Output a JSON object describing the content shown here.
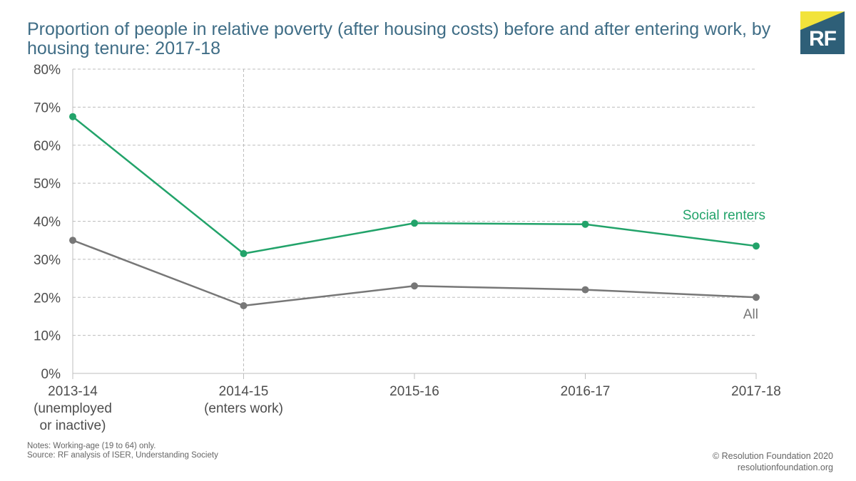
{
  "header": {
    "title": "Proportion of people in relative poverty (after housing costs) before and after entering work, by housing tenure: 2017-18",
    "logo_text": "RF"
  },
  "footer": {
    "notes": "Notes: Working-age (19 to 64) only.",
    "source": "Source: RF analysis of ISER, Understanding Society",
    "copyright": "© Resolution Foundation 2020",
    "website": "resolutionfoundation.org"
  },
  "colors": {
    "title": "#3f6d86",
    "social_renters": "#22a36a",
    "all": "#777777",
    "logo_bg": "#2e5f78",
    "logo_accent": "#f2e33b"
  },
  "chart_data": {
    "type": "line",
    "categories": [
      [
        "2013-14",
        "(unemployed",
        "or inactive)"
      ],
      [
        "2014-15",
        "(enters work)"
      ],
      [
        "2015-16"
      ],
      [
        "2016-17"
      ],
      [
        "2017-18"
      ]
    ],
    "y_ticks": [
      "0%",
      "10%",
      "20%",
      "30%",
      "40%",
      "50%",
      "60%",
      "70%",
      "80%"
    ],
    "ylim": [
      0,
      80
    ],
    "grid": true,
    "marker_line_category": "2014-15",
    "series": [
      {
        "name": "Social renters",
        "values": [
          67.5,
          31.5,
          39.5,
          39.2,
          33.5
        ],
        "color": "#22a36a"
      },
      {
        "name": "All",
        "values": [
          35,
          17.8,
          23,
          22,
          20
        ],
        "color": "#777777"
      }
    ]
  }
}
